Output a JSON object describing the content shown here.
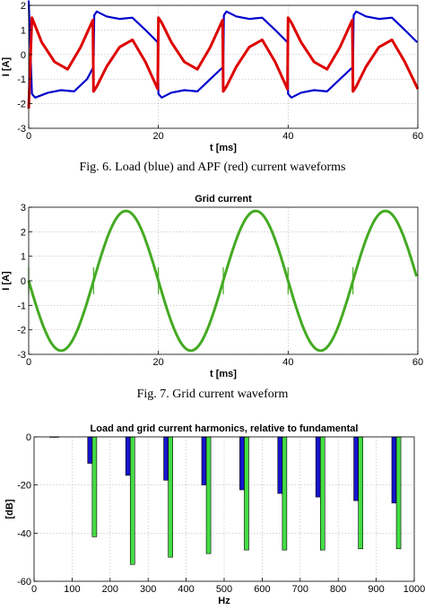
{
  "chart_data": [
    {
      "type": "line",
      "title": "",
      "xlabel": "t [ms]",
      "ylabel": "I [A]",
      "xlim": [
        0,
        60
      ],
      "ylim": [
        -3,
        2
      ],
      "xticks": [
        0,
        20,
        40,
        60
      ],
      "yticks": [
        -3,
        -2,
        -1,
        0,
        1,
        2
      ],
      "grid": true,
      "series": [
        {
          "color": "#0000cc",
          "x": [
            0,
            0.5,
            1,
            3,
            5,
            7,
            9,
            10,
            10.1,
            10.5,
            12,
            14,
            16,
            18,
            19.9,
            20,
            20.5,
            22,
            24,
            26,
            28,
            30,
            30.1,
            30.5,
            32,
            34,
            36,
            38,
            39.9,
            40,
            40.5,
            42,
            44,
            46,
            48,
            50,
            50.1,
            50.5,
            52,
            54,
            56,
            58,
            59.9
          ],
          "y": [
            2.2,
            -1.6,
            -1.75,
            -1.55,
            -1.45,
            -1.5,
            -1.0,
            -0.5,
            1.6,
            1.75,
            1.55,
            1.45,
            1.5,
            1.0,
            0.5,
            -1.6,
            -1.75,
            -1.55,
            -1.45,
            -1.5,
            -1.0,
            -0.5,
            1.6,
            1.75,
            1.55,
            1.45,
            1.5,
            1.0,
            0.5,
            -1.6,
            -1.75,
            -1.55,
            -1.45,
            -1.5,
            -1.0,
            -0.5,
            1.6,
            1.75,
            1.55,
            1.45,
            1.5,
            1.0,
            0.5
          ]
        },
        {
          "color": "#dd0000",
          "x": [
            0,
            0.5,
            2,
            4,
            6,
            8,
            9.9,
            10,
            10.5,
            12,
            14,
            16,
            18,
            19.9,
            20,
            20.5,
            22,
            24,
            26,
            28,
            29.9,
            30,
            30.5,
            32,
            34,
            36,
            38,
            39.9,
            40,
            40.5,
            42,
            44,
            46,
            48,
            49.9,
            50,
            50.5,
            52,
            54,
            56,
            58,
            60
          ],
          "y": [
            -2.2,
            1.5,
            0.5,
            -0.3,
            -0.6,
            0.3,
            1.4,
            -1.5,
            -1.3,
            -0.5,
            0.3,
            0.6,
            -0.3,
            -1.4,
            1.5,
            1.3,
            0.5,
            -0.3,
            -0.6,
            0.3,
            1.4,
            -1.5,
            -1.3,
            -0.5,
            0.3,
            0.6,
            -0.3,
            -1.4,
            1.5,
            1.3,
            0.5,
            -0.3,
            -0.6,
            0.3,
            1.4,
            -1.5,
            -1.3,
            -0.5,
            0.3,
            0.6,
            -0.3,
            -1.4
          ]
        }
      ]
    },
    {
      "type": "line",
      "title": "Grid current",
      "xlabel": "t [ms]",
      "ylabel": "I [A]",
      "xlim": [
        0,
        60
      ],
      "ylim": [
        -3,
        3
      ],
      "xticks": [
        0,
        20,
        40,
        60
      ],
      "yticks": [
        -3,
        -2,
        -1,
        0,
        1,
        2,
        3
      ],
      "grid": true,
      "series": [
        {
          "color": "#44aa22",
          "amplitude": 2.85,
          "period_ms": 20,
          "peak_ms": 15,
          "spikes_ms": [
            0,
            10,
            20,
            30,
            40,
            50
          ]
        }
      ]
    },
    {
      "type": "bar",
      "title": "Load and grid current harmonics, relative to fundamental",
      "xlabel": "Hz",
      "ylabel": "[dB]",
      "xlim": [
        0,
        1000
      ],
      "ylim": [
        -60,
        0
      ],
      "xticks": [
        0,
        100,
        200,
        300,
        400,
        500,
        600,
        700,
        800,
        900,
        1000
      ],
      "yticks": [
        -60,
        -40,
        -20,
        0
      ],
      "grid": true,
      "categories": [
        50,
        150,
        250,
        350,
        450,
        550,
        650,
        750,
        850,
        950
      ],
      "series": [
        {
          "color": "#1515cc",
          "values": [
            0,
            -11,
            -16,
            -18,
            -20,
            -22,
            -23.5,
            -25,
            -26.5,
            -27.5
          ]
        },
        {
          "color": "#44dd44",
          "values": [
            0,
            -41.5,
            -53,
            -50,
            -48.5,
            -47,
            -47,
            -47,
            -46.5,
            -46.5
          ]
        }
      ]
    }
  ],
  "captions": {
    "fig6": "Fig. 6. Load (blue) and APF (red) current waveforms",
    "fig7": "Fig. 7. Grid current waveform"
  }
}
